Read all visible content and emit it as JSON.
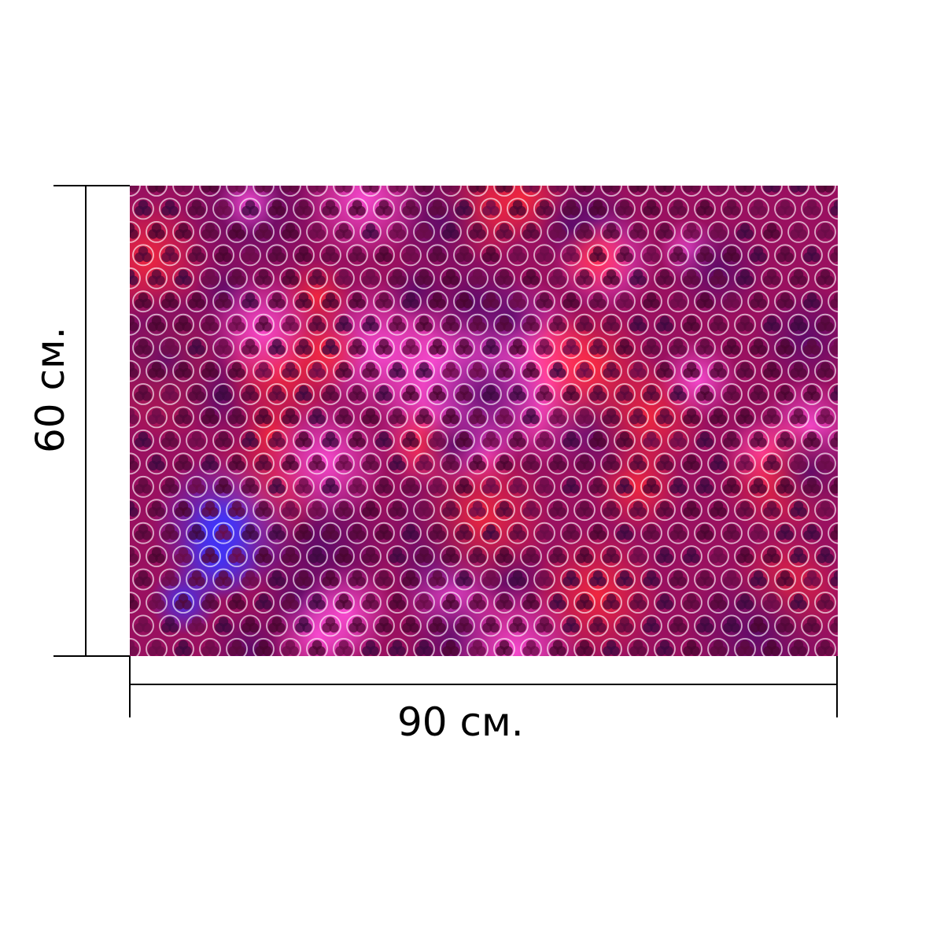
{
  "product": {
    "pattern": {
      "kind": "quatrefoil lattice on glowing bokeh background",
      "colors": [
        "#5a0a3c",
        "#a0124a",
        "#d11d5a",
        "#e02aa8",
        "#8a1a8a",
        "#3a20c8",
        "#c21030"
      ]
    }
  },
  "dimensions": {
    "width_label": "90 см.",
    "height_label": "60 см."
  }
}
